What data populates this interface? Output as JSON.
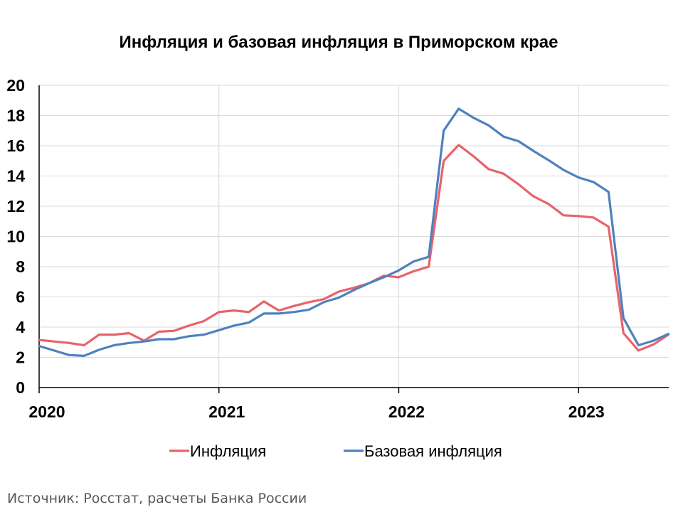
{
  "chart_data": {
    "type": "line",
    "title": "Инфляция и базовая инфляция в Приморском крае",
    "xlabel": "",
    "ylabel": "",
    "ylim": [
      0,
      20
    ],
    "yticks": [
      "0",
      "2",
      "4",
      "6",
      "8",
      "10",
      "12",
      "14",
      "16",
      "18",
      "20"
    ],
    "x_start": "2020-01",
    "x_period": "month",
    "x_year_labels": [
      "2020",
      "2021",
      "2022",
      "2023"
    ],
    "grid": true,
    "legend_position": "bottom",
    "series": [
      {
        "name": "Инфляция",
        "color": "#E8636A",
        "values": [
          3.15,
          3.05,
          2.95,
          2.8,
          3.5,
          3.5,
          3.6,
          3.1,
          3.7,
          3.75,
          4.1,
          4.4,
          5.0,
          5.1,
          5.0,
          5.7,
          5.1,
          5.4,
          5.65,
          5.85,
          6.35,
          6.6,
          6.9,
          7.4,
          7.3,
          7.7,
          8.0,
          15.0,
          16.05,
          15.3,
          14.45,
          14.15,
          13.45,
          12.65,
          12.15,
          11.4,
          11.35,
          11.25,
          10.65,
          3.6,
          2.45,
          2.85,
          3.5
        ]
      },
      {
        "name": "Базовая инфляция",
        "color": "#4F81BD",
        "values": [
          2.75,
          2.45,
          2.15,
          2.1,
          2.5,
          2.8,
          2.95,
          3.05,
          3.2,
          3.2,
          3.4,
          3.5,
          3.8,
          4.1,
          4.3,
          4.9,
          4.9,
          5.0,
          5.15,
          5.65,
          5.95,
          6.45,
          6.9,
          7.3,
          7.75,
          8.35,
          8.65,
          17.0,
          18.45,
          17.85,
          17.35,
          16.6,
          16.3,
          15.65,
          15.05,
          14.4,
          13.9,
          13.6,
          12.95,
          4.6,
          2.8,
          3.1,
          3.55
        ]
      }
    ]
  },
  "source": "Источник: Росстат, расчеты Банка России"
}
